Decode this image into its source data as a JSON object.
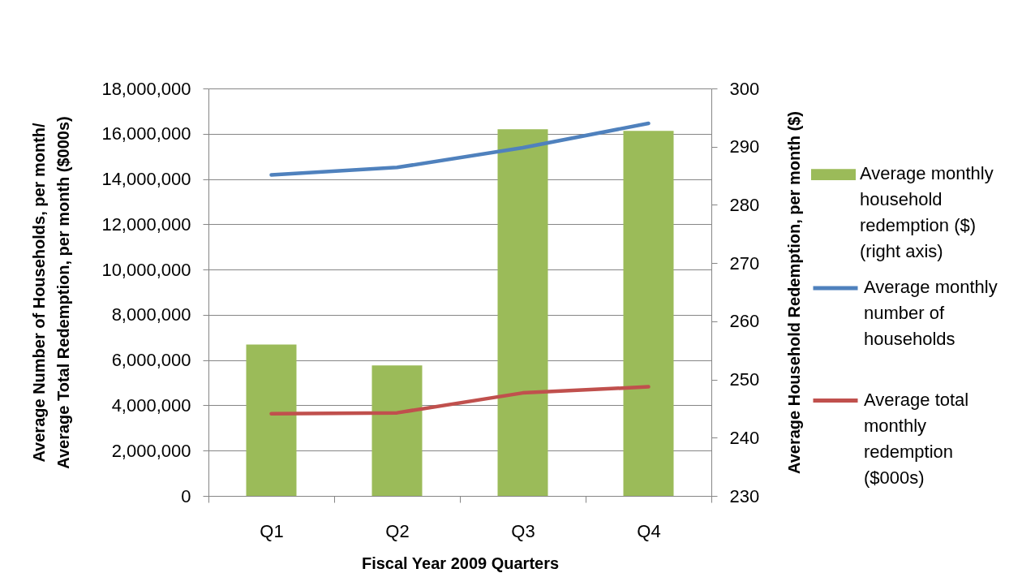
{
  "chart_data": {
    "type": "bar",
    "xlabel": "Fiscal Year 2009 Quarters",
    "ylabel": "Average Number of Households, per month/ Average Total Redemption, per month ($000s)",
    "y2label": "Average Household Redemption, per month ($)",
    "categories": [
      "Q1",
      "Q2",
      "Q3",
      "Q4"
    ],
    "series": [
      {
        "name": "Average monthly household redemption ($) (right axis)",
        "axis": "y2",
        "color": "#9bbb59",
        "values": [
          256.0,
          252.4,
          293.0,
          292.7
        ]
      },
      {
        "name": "Average monthly number of households",
        "type": "line",
        "color": "#4f81bd",
        "values": [
          14180000,
          14510000,
          15380000,
          16460000
        ]
      },
      {
        "name": "Average total monthly redemption ($000s)",
        "type": "line",
        "color": "#c0504d",
        "values": [
          3630000,
          3670000,
          4550000,
          4820000
        ]
      }
    ],
    "ylim": [
      0,
      18000000
    ],
    "yticks": [
      0,
      {
        "value": 2000000,
        "label": "2,000,000"
      },
      {
        "value": 4000000,
        "label": "4,000,000"
      },
      {
        "value": 6000000,
        "label": "6,000,000"
      },
      {
        "value": 8000000,
        "label": "8,000,000"
      },
      {
        "value": 10000000,
        "label": "10,000,000"
      },
      {
        "value": 12000000,
        "label": "12,000,000"
      },
      {
        "value": 14000000,
        "label": "14,000,000"
      },
      {
        "value": 16000000,
        "label": "16,000,000"
      },
      {
        "value": 18000000,
        "label": "18,000,000"
      }
    ],
    "y2lim": [
      230,
      300
    ],
    "y2ticks": [
      230,
      240,
      250,
      260,
      270,
      280,
      290,
      300
    ],
    "grid": "y",
    "legend": "right",
    "line_style": "solid"
  }
}
